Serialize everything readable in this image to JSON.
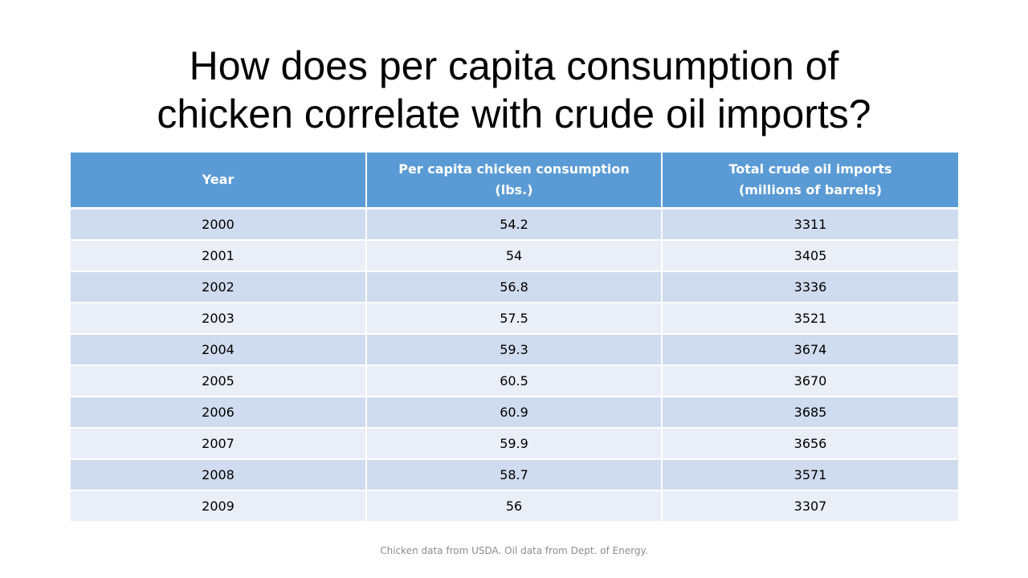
{
  "slide": {
    "title_line1": "How does per capita consumption of",
    "title_line2": "chicken correlate with crude oil imports?",
    "source_note": "Chicken data from USDA. Oil data from Dept. of Energy."
  },
  "table": {
    "header": {
      "year": "Year",
      "chicken_line1": "Per capita chicken consumption",
      "chicken_line2": "(lbs.)",
      "oil_line1": "Total crude oil imports",
      "oil_line2": "(millions of barrels)"
    },
    "rows": [
      {
        "year": "2000",
        "chicken": "54.2",
        "oil": "3311"
      },
      {
        "year": "2001",
        "chicken": "54",
        "oil": "3405"
      },
      {
        "year": "2002",
        "chicken": "56.8",
        "oil": "3336"
      },
      {
        "year": "2003",
        "chicken": "57.5",
        "oil": "3521"
      },
      {
        "year": "2004",
        "chicken": "59.3",
        "oil": "3674"
      },
      {
        "year": "2005",
        "chicken": "60.5",
        "oil": "3670"
      },
      {
        "year": "2006",
        "chicken": "60.9",
        "oil": "3685"
      },
      {
        "year": "2007",
        "chicken": "59.9",
        "oil": "3656"
      },
      {
        "year": "2008",
        "chicken": "58.7",
        "oil": "3571"
      },
      {
        "year": "2009",
        "chicken": "56",
        "oil": "3307"
      }
    ]
  },
  "colors": {
    "header_bg": "#5b9bd5",
    "row_band_dark": "#cfdbee",
    "row_band_light": "#e9eef7",
    "note_text": "#8c8c8c"
  }
}
